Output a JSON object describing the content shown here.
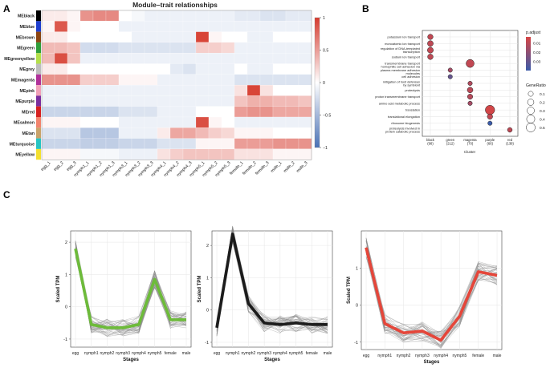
{
  "panel_letters": [
    "A",
    "B",
    "C"
  ],
  "chart_data": [
    {
      "type": "heatmap",
      "panel": "A",
      "title": "Module–trait relationships",
      "rows": [
        "MEblack",
        "MEblue",
        "MEbrown",
        "MEgreen",
        "MEgreenyellow",
        "MEgrey",
        "MEmagenta",
        "MEpink",
        "MEpurple",
        "MEred",
        "MEsalmon",
        "MEtan",
        "MEturquoise",
        "MEyellow"
      ],
      "row_colors": [
        "#000000",
        "#1f3fcf",
        "#8b4513",
        "#2e9e3a",
        "#b4e04a",
        "#bdbdbd",
        "#b0309a",
        "#f2a1b8",
        "#7b2fa0",
        "#d62020",
        "#f2846e",
        "#c9a36b",
        "#27c4c4",
        "#f4e030"
      ],
      "columns": [
        "egg_1",
        "egg_2",
        "egg_3",
        "nymph1_1",
        "nymph1_2",
        "nymph1_3",
        "nymph3_1",
        "nymph3_2",
        "nymph3_3",
        "nymph4_1",
        "nymph4_2",
        "nymph4_3",
        "nymph5_1",
        "nymph5_2",
        "nymph5_3",
        "female_1",
        "female_2",
        "female_3",
        "male_1",
        "male_2",
        "male_3"
      ],
      "values": [
        [
          0.1,
          0.1,
          0.05,
          0.55,
          0.6,
          0.6,
          0.0,
          -0.05,
          -0.1,
          -0.1,
          -0.1,
          -0.1,
          -0.1,
          -0.1,
          -0.1,
          -0.15,
          -0.15,
          -0.2,
          -0.2,
          -0.15,
          -0.15
        ],
        [
          0.05,
          0.85,
          0.05,
          0.0,
          0.0,
          0.0,
          -0.1,
          -0.1,
          -0.1,
          -0.1,
          -0.1,
          -0.1,
          -0.1,
          -0.1,
          -0.1,
          -0.1,
          -0.1,
          -0.1,
          -0.1,
          -0.1,
          -0.1
        ],
        [
          0.1,
          0.1,
          0.0,
          0.0,
          0.0,
          0.0,
          0.0,
          -0.1,
          -0.1,
          -0.1,
          -0.1,
          -0.1,
          0.95,
          0.05,
          0.0,
          0.0,
          -0.1,
          -0.1,
          0.0,
          0.0,
          0.0
        ],
        [
          0.35,
          0.35,
          0.3,
          -0.25,
          -0.25,
          -0.25,
          -0.2,
          -0.2,
          -0.2,
          -0.2,
          -0.2,
          -0.2,
          0.25,
          0.25,
          0.2,
          -0.1,
          -0.1,
          -0.1,
          -0.1,
          -0.1,
          -0.1
        ],
        [
          0.35,
          0.9,
          0.3,
          -0.1,
          -0.1,
          -0.1,
          -0.1,
          -0.1,
          -0.1,
          -0.1,
          -0.1,
          -0.1,
          -0.1,
          -0.1,
          -0.1,
          -0.1,
          -0.1,
          -0.1,
          -0.1,
          -0.1,
          -0.1
        ],
        [
          0.1,
          0.1,
          0.0,
          0.0,
          0.0,
          0.0,
          0.0,
          0.0,
          0.0,
          0.0,
          -0.15,
          -0.2,
          -0.1,
          -0.1,
          -0.1,
          0.0,
          -0.1,
          -0.1,
          0.0,
          0.0,
          0.0
        ],
        [
          0.55,
          0.55,
          0.55,
          0.25,
          0.25,
          0.25,
          0.05,
          0.05,
          0.05,
          -0.1,
          -0.1,
          -0.1,
          -0.1,
          -0.1,
          -0.1,
          -0.2,
          -0.2,
          -0.2,
          -0.2,
          -0.2,
          -0.2
        ],
        [
          -0.1,
          -0.1,
          -0.1,
          -0.1,
          -0.1,
          -0.1,
          -0.1,
          -0.1,
          -0.1,
          -0.1,
          -0.1,
          -0.1,
          -0.1,
          -0.1,
          -0.1,
          0.15,
          0.95,
          0.15,
          0.0,
          0.0,
          0.0
        ],
        [
          -0.1,
          -0.1,
          -0.1,
          -0.1,
          -0.1,
          -0.1,
          -0.1,
          -0.1,
          -0.1,
          -0.1,
          -0.1,
          -0.1,
          -0.1,
          -0.1,
          -0.1,
          0.3,
          0.4,
          0.4,
          0.35,
          0.35,
          0.3
        ],
        [
          -0.3,
          -0.3,
          -0.3,
          -0.3,
          -0.3,
          -0.3,
          -0.2,
          -0.2,
          -0.2,
          -0.1,
          -0.1,
          -0.1,
          0.0,
          0.0,
          0.0,
          0.5,
          0.55,
          0.55,
          0.45,
          0.45,
          0.45
        ],
        [
          0.05,
          0.05,
          0.05,
          0.0,
          0.0,
          0.0,
          -0.1,
          -0.1,
          -0.1,
          -0.1,
          -0.1,
          -0.1,
          0.9,
          0.05,
          0.0,
          -0.1,
          -0.1,
          -0.1,
          -0.1,
          -0.1,
          -0.1
        ],
        [
          -0.2,
          -0.2,
          -0.2,
          -0.4,
          -0.4,
          -0.4,
          -0.1,
          -0.1,
          -0.1,
          0.1,
          0.45,
          0.45,
          0.35,
          0.25,
          0.2,
          0.05,
          0.05,
          0.05,
          0.0,
          0.0,
          0.0
        ],
        [
          -0.3,
          -0.3,
          -0.3,
          -0.35,
          -0.35,
          -0.35,
          -0.3,
          -0.3,
          -0.3,
          -0.2,
          -0.2,
          -0.2,
          0.05,
          0.05,
          0.05,
          0.5,
          0.5,
          0.5,
          0.55,
          0.55,
          0.55
        ],
        [
          0.05,
          0.05,
          0.05,
          -0.05,
          -0.05,
          -0.05,
          -0.1,
          -0.1,
          -0.1,
          0.15,
          0.25,
          0.3,
          0.3,
          0.3,
          0.3,
          0.15,
          0.15,
          0.15,
          0.05,
          0.05,
          0.05
        ]
      ],
      "colorbar": {
        "min": -1,
        "max": 1,
        "ticks": [
          1,
          0.5,
          0,
          -0.5,
          -1
        ],
        "tick_labels": [
          "1",
          "0.5",
          "0",
          "−0.5",
          "−1"
        ]
      },
      "colors": {
        "negative": "#4a72b6",
        "neutral": "#ffffff",
        "positive": "#d63b2e"
      }
    },
    {
      "type": "scatter",
      "panel": "B",
      "title": "",
      "xlabel": "Cluster",
      "clusters": [
        "black\n(98)",
        "green\n(212)",
        "magenta\n(70)",
        "purple\n(66)",
        "red\n(138)"
      ],
      "terms": [
        "potassium ion transport",
        "monoatomic ion transport",
        "regulation of DNA-templated\ntranscription",
        "sodium ion transport",
        "transmembrane transport",
        "homophilic cell adhesion via\nplasma membrane adhesion\nmolecules",
        "cell adhesion",
        "mitigation of host defenses\nby symbiont",
        "proteolysis",
        "proton transmembrane transport",
        "amino acid metabolic process",
        "translation",
        "translational elongation",
        "ribosome biogenesis",
        "proteolysis involved in\nprotein catabolic process"
      ],
      "points": [
        {
          "cluster": 0,
          "term": 0,
          "gene_ratio": 0.12,
          "p_adjust": 0.008
        },
        {
          "cluster": 0,
          "term": 1,
          "gene_ratio": 0.15,
          "p_adjust": 0.009
        },
        {
          "cluster": 0,
          "term": 2,
          "gene_ratio": 0.16,
          "p_adjust": 0.008
        },
        {
          "cluster": 0,
          "term": 3,
          "gene_ratio": 0.13,
          "p_adjust": 0.009
        },
        {
          "cluster": 2,
          "term": 4,
          "gene_ratio": 0.38,
          "p_adjust": 0.008
        },
        {
          "cluster": 1,
          "term": 5,
          "gene_ratio": 0.06,
          "p_adjust": 0.015
        },
        {
          "cluster": 1,
          "term": 6,
          "gene_ratio": 0.06,
          "p_adjust": 0.03
        },
        {
          "cluster": 2,
          "term": 7,
          "gene_ratio": 0.06,
          "p_adjust": 0.012
        },
        {
          "cluster": 2,
          "term": 8,
          "gene_ratio": 0.14,
          "p_adjust": 0.01
        },
        {
          "cluster": 2,
          "term": 9,
          "gene_ratio": 0.11,
          "p_adjust": 0.011
        },
        {
          "cluster": 2,
          "term": 10,
          "gene_ratio": 0.06,
          "p_adjust": 0.015
        },
        {
          "cluster": 3,
          "term": 11,
          "gene_ratio": 0.56,
          "p_adjust": 0.004
        },
        {
          "cluster": 3,
          "term": 12,
          "gene_ratio": 0.12,
          "p_adjust": 0.008
        },
        {
          "cluster": 3,
          "term": 13,
          "gene_ratio": 0.06,
          "p_adjust": 0.04
        },
        {
          "cluster": 4,
          "term": 14,
          "gene_ratio": 0.08,
          "p_adjust": 0.009
        }
      ],
      "legend_padjust": {
        "title": "p.adjust",
        "ticks": [
          0.01,
          0.02,
          0.03
        ],
        "tick_labels": [
          "0.01",
          "0.02",
          "0.03"
        ],
        "range": [
          0.003,
          0.04
        ],
        "low_color": "#d64545",
        "high_color": "#3b5ba9"
      },
      "legend_generatio": {
        "title": "GeneRatio",
        "values": [
          0.1,
          0.2,
          0.3,
          0.4,
          0.5
        ],
        "labels": [
          "0.1",
          "0.2",
          "0.3",
          "0.4",
          "0.5"
        ]
      }
    },
    {
      "type": "line",
      "panel": "C",
      "xlabel": "Stages",
      "ylabel": "Scaled TPM",
      "categories": [
        "egg",
        "nymph1",
        "nymph2",
        "nymph3",
        "nymph4",
        "nymph5",
        "female",
        "male"
      ],
      "ylim": [
        -1.25,
        2.35
      ],
      "yticks": [
        -1,
        0,
        1,
        2
      ],
      "mean_values": [
        1.8,
        -0.55,
        -0.65,
        -0.65,
        -0.55,
        0.85,
        -0.4,
        -0.4
      ],
      "highlight_color": "#6dbb3a"
    },
    {
      "type": "line",
      "panel": "C",
      "xlabel": "Stages",
      "ylabel": "Scaled TPM",
      "categories": [
        "egg",
        "nymph1",
        "nymph2",
        "nymph3",
        "nymph4",
        "nymph5",
        "female",
        "male"
      ],
      "ylim": [
        -1.15,
        2.45
      ],
      "yticks": [
        -1,
        0,
        1,
        2
      ],
      "mean_values": [
        -0.55,
        2.35,
        0.2,
        -0.4,
        -0.45,
        -0.4,
        -0.45,
        -0.45
      ],
      "highlight_color": "#1c1c1c"
    },
    {
      "type": "line",
      "panel": "C",
      "xlabel": "Stages",
      "ylabel": "Scaled TPM",
      "categories": [
        "egg",
        "nymph1",
        "nymph2",
        "nymph3",
        "nymph4",
        "nymph5",
        "female",
        "male"
      ],
      "ylim": [
        -1.2,
        2.0
      ],
      "yticks": [
        -1,
        0,
        1
      ],
      "mean_values": [
        1.55,
        -0.5,
        -0.75,
        -0.7,
        -0.95,
        -0.3,
        0.9,
        0.8
      ],
      "highlight_color": "#e5463a"
    }
  ]
}
